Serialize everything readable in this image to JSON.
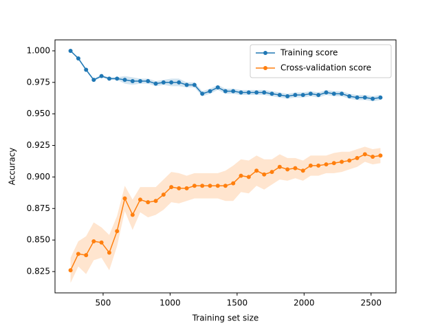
{
  "chart_data": {
    "type": "line",
    "xlabel": "Training set size",
    "ylabel": "Accuracy",
    "x": [
      257,
      315,
      373,
      430,
      488,
      546,
      604,
      662,
      720,
      777,
      835,
      893,
      951,
      1009,
      1066,
      1124,
      1182,
      1240,
      1298,
      1356,
      1413,
      1471,
      1529,
      1587,
      1645,
      1702,
      1760,
      1818,
      1876,
      1934,
      1992,
      2049,
      2107,
      2165,
      2223,
      2281,
      2338,
      2396,
      2454,
      2512,
      2570
    ],
    "series": [
      {
        "name": "Training score",
        "color": "#1f77b4",
        "values": [
          1.0,
          0.994,
          0.985,
          0.977,
          0.98,
          0.978,
          0.978,
          0.977,
          0.976,
          0.976,
          0.976,
          0.974,
          0.975,
          0.975,
          0.975,
          0.973,
          0.973,
          0.966,
          0.968,
          0.971,
          0.968,
          0.968,
          0.967,
          0.967,
          0.967,
          0.967,
          0.966,
          0.965,
          0.964,
          0.965,
          0.965,
          0.966,
          0.965,
          0.967,
          0.966,
          0.966,
          0.964,
          0.963,
          0.963,
          0.962,
          0.963
        ],
        "std": [
          0,
          0.001,
          0.001,
          0.001,
          0.001,
          0.001,
          0.001,
          0.003,
          0.003,
          0.002,
          0.002,
          0.002,
          0.002,
          0.003,
          0.003,
          0.002,
          0.002,
          0.002,
          0.002,
          0.002,
          0.002,
          0.002,
          0.002,
          0.002,
          0.002,
          0.002,
          0.002,
          0.002,
          0.002,
          0.002,
          0.002,
          0.002,
          0.002,
          0.002,
          0.002,
          0.002,
          0.002,
          0.002,
          0.002,
          0.002,
          0.002
        ]
      },
      {
        "name": "Cross-validation score",
        "color": "#ff7f0e",
        "values": [
          0.826,
          0.839,
          0.838,
          0.849,
          0.848,
          0.84,
          0.857,
          0.883,
          0.87,
          0.882,
          0.88,
          0.881,
          0.886,
          0.892,
          0.891,
          0.891,
          0.893,
          0.893,
          0.893,
          0.893,
          0.893,
          0.895,
          0.901,
          0.9,
          0.905,
          0.902,
          0.904,
          0.908,
          0.906,
          0.907,
          0.905,
          0.909,
          0.909,
          0.91,
          0.911,
          0.912,
          0.913,
          0.915,
          0.918,
          0.916,
          0.917
        ],
        "std": [
          0.01,
          0.01,
          0.015,
          0.015,
          0.012,
          0.014,
          0.012,
          0.01,
          0.012,
          0.01,
          0.012,
          0.011,
          0.012,
          0.012,
          0.012,
          0.01,
          0.01,
          0.01,
          0.01,
          0.01,
          0.012,
          0.014,
          0.013,
          0.013,
          0.012,
          0.012,
          0.01,
          0.01,
          0.009,
          0.008,
          0.008,
          0.008,
          0.008,
          0.007,
          0.008,
          0.008,
          0.007,
          0.007,
          0.006,
          0.006,
          0.006
        ]
      }
    ],
    "xlim": [
      141,
      2686
    ],
    "xticks": [
      500,
      1000,
      1500,
      2000,
      2500
    ],
    "ylim": [
      0.8081,
      1.0087
    ],
    "yticks": [
      {
        "value": 0.825,
        "label": "0.825"
      },
      {
        "value": 0.85,
        "label": "0.850"
      },
      {
        "value": 0.875,
        "label": "0.875"
      },
      {
        "value": 0.9,
        "label": "0.900"
      },
      {
        "value": 0.925,
        "label": "0.925"
      },
      {
        "value": 0.95,
        "label": "0.950"
      },
      {
        "value": 0.975,
        "label": "0.975"
      },
      {
        "value": 1,
        "label": "1.000"
      }
    ],
    "legend": "upper right"
  }
}
